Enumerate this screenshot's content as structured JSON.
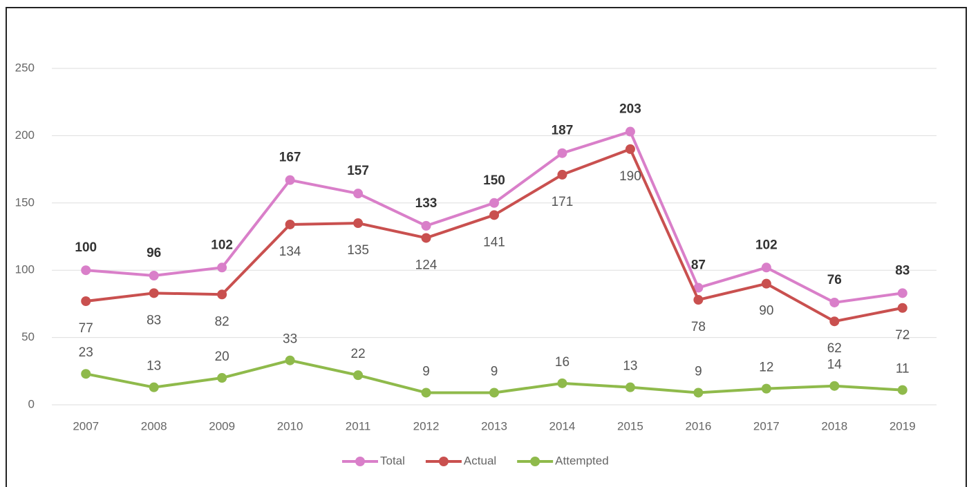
{
  "chart_data": {
    "type": "line",
    "categories": [
      "2007",
      "2008",
      "2009",
      "2010",
      "2011",
      "2012",
      "2013",
      "2014",
      "2015",
      "2016",
      "2017",
      "2018",
      "2019"
    ],
    "series": [
      {
        "name": "Total",
        "color": "#d97fc9",
        "values": [
          100,
          96,
          102,
          167,
          157,
          133,
          150,
          187,
          203,
          87,
          102,
          76,
          83
        ]
      },
      {
        "name": "Actual",
        "color": "#c9504f",
        "values": [
          77,
          83,
          82,
          134,
          135,
          124,
          141,
          171,
          190,
          78,
          90,
          62,
          72
        ]
      },
      {
        "name": "Attempted",
        "color": "#8fba4b",
        "values": [
          23,
          13,
          20,
          33,
          22,
          9,
          9,
          16,
          13,
          9,
          12,
          14,
          11
        ]
      }
    ],
    "ylim": [
      0,
      250
    ],
    "yticks": [
      0,
      50,
      100,
      150,
      200,
      250
    ],
    "grid": true,
    "legend": "bottom"
  }
}
